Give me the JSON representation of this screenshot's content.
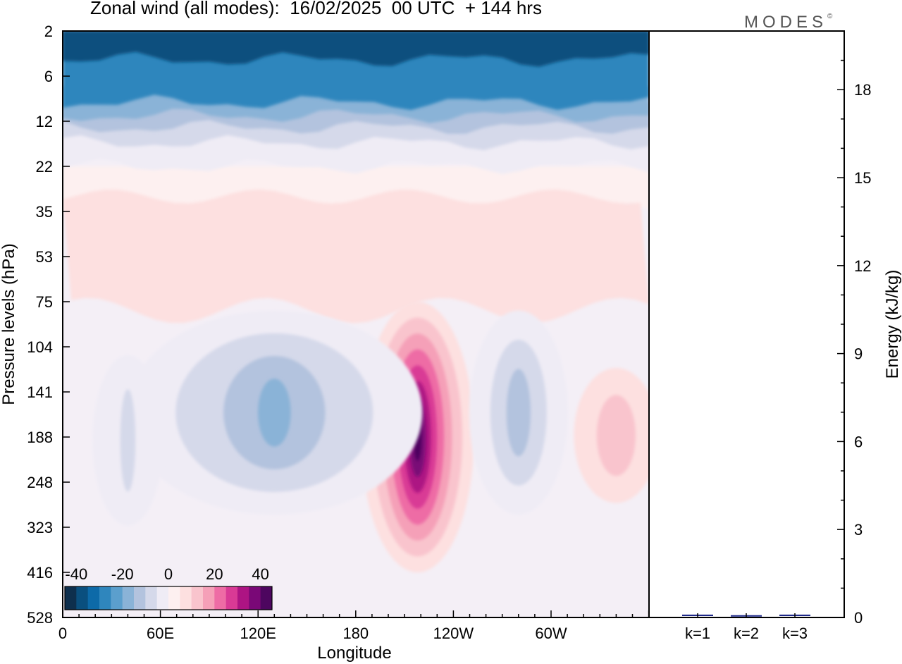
{
  "title": "Zonal wind (all modes):  16/02/2025  00 UTC  + 144 hrs",
  "brand": "MODES",
  "brand_mark": "©",
  "chart_data": [
    {
      "type": "heatmap",
      "title": "Zonal wind (all modes):  16/02/2025  00 UTC  + 144 hrs",
      "xlabel": "Longitude",
      "ylabel": "Pressure levels (hPa)",
      "x_ticks": [
        "0",
        "60E",
        "120E",
        "180",
        "120W",
        "60W"
      ],
      "y_ticks": [
        "2",
        "6",
        "12",
        "22",
        "35",
        "53",
        "75",
        "104",
        "141",
        "188",
        "248",
        "323",
        "416",
        "528"
      ],
      "colorbar": {
        "tick_labels": [
          "-40",
          "-20",
          "0",
          "20",
          "40"
        ],
        "range": [
          -45,
          45
        ],
        "colors": [
          "#0e2f4d",
          "#0a4f7e",
          "#0d6aa8",
          "#2f86bd",
          "#5b9fcd",
          "#8ab3d7",
          "#b3c3de",
          "#d5d9ea",
          "#efecf5",
          "#fdf0f0",
          "#fde0e0",
          "#f9c4cd",
          "#f5a0b8",
          "#ee6ca5",
          "#d93a95",
          "#ad1483",
          "#7a0877",
          "#4d065f"
        ]
      },
      "features": [
        {
          "name": "easterly stratospheric jet",
          "x_range": [
            "0",
            "60W"
          ],
          "y_range": [
            2,
            12
          ],
          "value": -40
        },
        {
          "name": "westerly jet core",
          "x_range": [
            "180",
            "120W"
          ],
          "y_range": [
            104,
            248
          ],
          "value": 40
        },
        {
          "name": "easterly tropospheric band",
          "x_range": [
            "60E",
            "180"
          ],
          "y_range": [
            75,
            188
          ],
          "value": -20
        },
        {
          "name": "easterly tropospheric band",
          "x_range": [
            "120W",
            "60W"
          ],
          "y_range": [
            75,
            188
          ],
          "value": -15
        },
        {
          "name": "weak westerlies",
          "x_range": [
            "0",
            "60W"
          ],
          "y_range": [
            22,
            75
          ],
          "value": 8
        }
      ]
    },
    {
      "type": "bar",
      "ylabel": "Energy (kJ/kg)",
      "categories": [
        "k=1",
        "k=2",
        "k=3"
      ],
      "values": [
        0.05,
        0.03,
        0.05
      ],
      "ylim": [
        0,
        20
      ],
      "y_ticks": [
        "0",
        "3",
        "6",
        "9",
        "12",
        "15",
        "18"
      ],
      "bar_color": "#1f2a8a"
    }
  ]
}
